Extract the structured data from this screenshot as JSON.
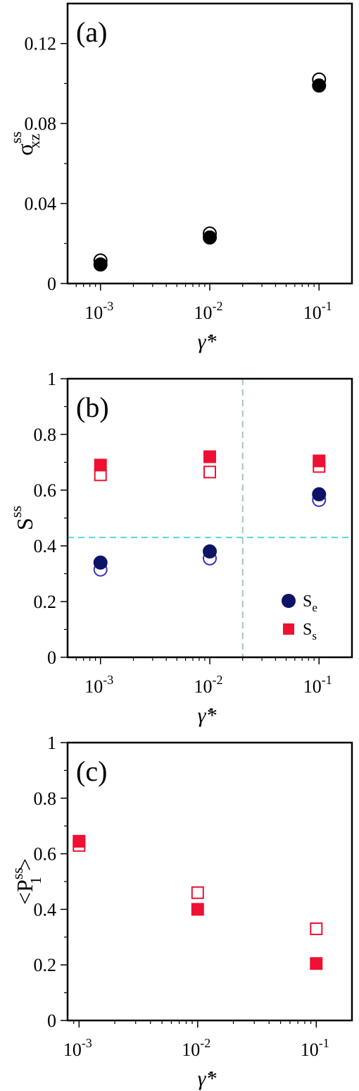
{
  "chart_data": [
    {
      "type": "scatter",
      "panel_label": "(a)",
      "xscale": "log",
      "xlim": [
        0.0005,
        0.2
      ],
      "ylim": [
        0,
        0.14
      ],
      "xticks": [
        0.001,
        0.01,
        0.1
      ],
      "xtick_exponents": [
        "-3",
        "-2",
        "-1"
      ],
      "yticks": [
        0,
        0.04,
        0.08,
        0.12
      ],
      "ytick_labels": [
        "0",
        "0.04",
        "0.08",
        "0.12"
      ],
      "ylabel": {
        "base": "σ",
        "sup": "ss",
        "sub": "xz"
      },
      "xlabel": "γ̇*",
      "series": [
        {
          "marker": "circle",
          "filled": false,
          "color": "#000000",
          "x": [
            0.001,
            0.01,
            0.1
          ],
          "y": [
            0.0115,
            0.025,
            0.102
          ]
        },
        {
          "marker": "circle",
          "filled": true,
          "color": "#000000",
          "x": [
            0.001,
            0.01,
            0.1
          ],
          "y": [
            0.0095,
            0.023,
            0.099
          ]
        }
      ]
    },
    {
      "type": "scatter",
      "panel_label": "(b)",
      "xscale": "log",
      "xlim": [
        0.0005,
        0.2
      ],
      "ylim": [
        0,
        1
      ],
      "xticks": [
        0.001,
        0.01,
        0.1
      ],
      "xtick_exponents": [
        "-3",
        "-2",
        "-1"
      ],
      "yticks": [
        0,
        0.2,
        0.4,
        0.6,
        0.8,
        1
      ],
      "ytick_labels": [
        "0",
        "0.2",
        "0.4",
        "0.6",
        "0.8",
        "1"
      ],
      "ylabel": {
        "base": "S",
        "sup": "ss",
        "sub": ""
      },
      "xlabel": "γ̇*",
      "hline": {
        "y": 0.43,
        "color": "#55d6e8"
      },
      "vline": {
        "x": 0.02,
        "color": "#a9c2bd"
      },
      "legend_position": "bottom-right",
      "legend": [
        {
          "marker": "circle",
          "color": "#0c1466",
          "base": "S",
          "sub": "e"
        },
        {
          "marker": "square",
          "color": "#ee1133",
          "base": "S",
          "sub": "s"
        }
      ],
      "series": [
        {
          "marker": "circle",
          "filled": false,
          "color": "#3b2fc4",
          "x": [
            0.001,
            0.01,
            0.1
          ],
          "y": [
            0.315,
            0.355,
            0.565
          ]
        },
        {
          "marker": "circle",
          "filled": true,
          "color": "#0c1466",
          "x": [
            0.001,
            0.01,
            0.1
          ],
          "y": [
            0.34,
            0.38,
            0.585
          ]
        },
        {
          "marker": "square",
          "filled": false,
          "color": "#ee1133",
          "x": [
            0.001,
            0.01,
            0.1
          ],
          "y": [
            0.655,
            0.665,
            0.685
          ]
        },
        {
          "marker": "square",
          "filled": true,
          "color": "#ee1133",
          "x": [
            0.001,
            0.01,
            0.1
          ],
          "y": [
            0.69,
            0.72,
            0.705
          ]
        }
      ]
    },
    {
      "type": "scatter",
      "panel_label": "(c)",
      "xscale": "log",
      "xlim": [
        0.0008,
        0.2
      ],
      "ylim": [
        0,
        1
      ],
      "xticks": [
        0.001,
        0.01,
        0.1
      ],
      "xtick_exponents": [
        "-3",
        "-2",
        "-1"
      ],
      "yticks": [
        0,
        0.2,
        0.4,
        0.6,
        0.8,
        1
      ],
      "ytick_labels": [
        "0",
        "0.2",
        "0.4",
        "0.6",
        "0.8",
        "1"
      ],
      "ylabel": {
        "left": "<P",
        "sup": "ss",
        "sub": "1",
        "right": ">"
      },
      "xlabel": "γ̇*",
      "series": [
        {
          "marker": "square",
          "filled": false,
          "color": "#ee1133",
          "x": [
            0.001,
            0.01,
            0.1
          ],
          "y": [
            0.63,
            0.46,
            0.33
          ]
        },
        {
          "marker": "square",
          "filled": true,
          "color": "#ee1133",
          "x": [
            0.001,
            0.01,
            0.1
          ],
          "y": [
            0.645,
            0.4,
            0.205
          ]
        }
      ]
    }
  ]
}
